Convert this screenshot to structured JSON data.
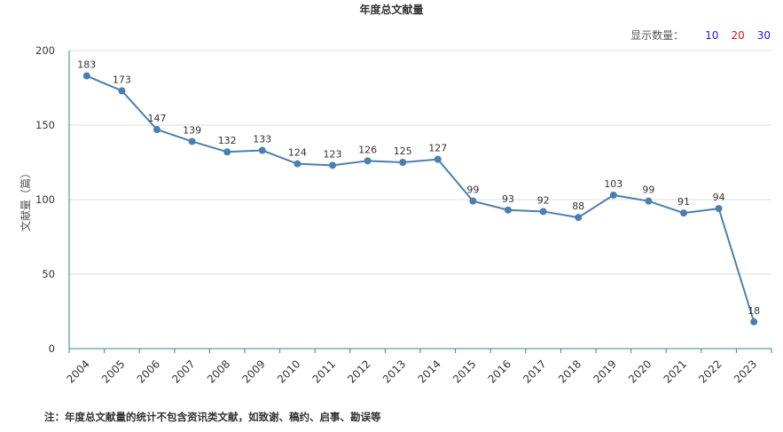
{
  "title": "年度总文献量",
  "count_selector": {
    "label": "显示数量：",
    "options": [
      {
        "value": "10",
        "color": "#1a1adf"
      },
      {
        "value": "20",
        "color": "#e01010"
      },
      {
        "value": "30",
        "color": "#1a1adf"
      }
    ]
  },
  "note": "注：年度总文献量的统计不包含资讯类文献，如致谢、稿约、启事、勘误等",
  "colors": {
    "line": "#4a7fb0",
    "axis": "#2e8a8a",
    "grid": "#dddddd"
  },
  "chart_data": {
    "type": "line",
    "x": [
      "2004",
      "2005",
      "2006",
      "2007",
      "2008",
      "2009",
      "2010",
      "2011",
      "2012",
      "2013",
      "2014",
      "2015",
      "2016",
      "2017",
      "2018",
      "2019",
      "2020",
      "2021",
      "2022",
      "2023"
    ],
    "series": [
      {
        "values": [
          183,
          173,
          147,
          139,
          132,
          133,
          124,
          123,
          126,
          125,
          127,
          99,
          93,
          92,
          88,
          103,
          99,
          91,
          94,
          18
        ]
      }
    ],
    "ylabel": "文献量（篇）",
    "ylim": [
      0,
      200
    ],
    "yticks": [
      0,
      50,
      100,
      150,
      200
    ],
    "grid": true,
    "data_labels": true
  }
}
